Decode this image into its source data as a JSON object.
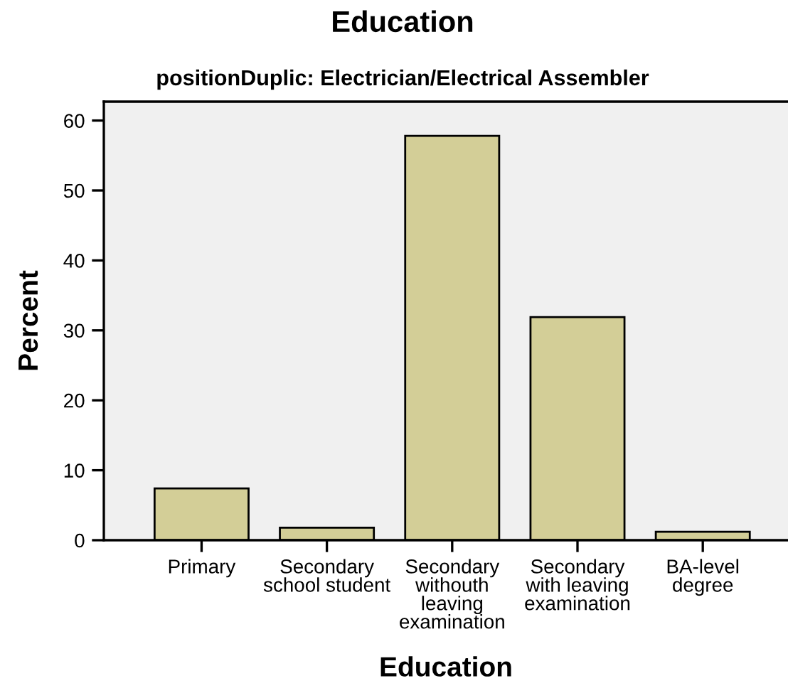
{
  "chart_data": {
    "type": "bar",
    "title": "Education",
    "subtitle": "positionDuplic: Electrician/Electrical Assembler",
    "xlabel": "Education",
    "ylabel": "Percent",
    "categories": [
      "Primary",
      "Secondary\nschool student",
      "Secondary\nwithouth\nleaving\nexamination",
      "Secondary\nwith leaving\nexamination",
      "BA-level\ndegree"
    ],
    "values": [
      7.4,
      1.8,
      57.8,
      31.9,
      1.2
    ],
    "color": "#d3ce97",
    "ylim": [
      0,
      62.7
    ],
    "yticks": [
      0,
      10,
      20,
      30,
      40,
      50,
      60
    ],
    "grid": false,
    "legend": false
  }
}
